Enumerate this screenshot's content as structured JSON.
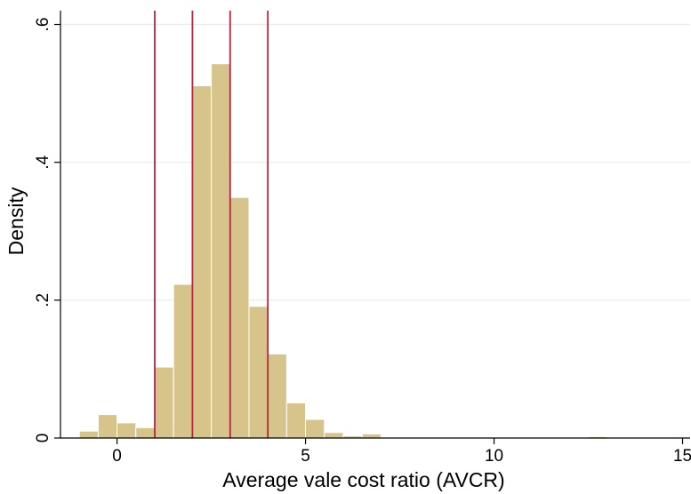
{
  "chart_data": {
    "type": "bar",
    "title": "",
    "xlabel": "Average vale cost ratio (AVCR)",
    "ylabel": "Density",
    "xlim": [
      -1.5,
      15.2
    ],
    "ylim": [
      0,
      0.62
    ],
    "x_ticks": [
      {
        "value": 0,
        "label": "0"
      },
      {
        "value": 5,
        "label": "5"
      },
      {
        "value": 10,
        "label": "10"
      },
      {
        "value": 15,
        "label": "15"
      }
    ],
    "y_ticks": [
      {
        "value": 0,
        "label": "0"
      },
      {
        "value": 0.2,
        "label": ".2"
      },
      {
        "value": 0.4,
        "label": ".4"
      },
      {
        "value": 0.6,
        "label": ".6"
      }
    ],
    "grid": true,
    "bin_width": 0.5,
    "bins": [
      {
        "start": -1.0,
        "density": 0.01
      },
      {
        "start": -0.5,
        "density": 0.034
      },
      {
        "start": 0.0,
        "density": 0.022
      },
      {
        "start": 0.5,
        "density": 0.015
      },
      {
        "start": 0.5,
        "density": 0.015
      },
      {
        "start": 1.0,
        "density": 0.103
      },
      {
        "start": 1.5,
        "density": 0.223
      },
      {
        "start": 2.0,
        "density": 0.511
      },
      {
        "start": 2.5,
        "density": 0.543
      },
      {
        "start": 3.0,
        "density": 0.349
      },
      {
        "start": 3.5,
        "density": 0.191
      },
      {
        "start": 4.0,
        "density": 0.122
      },
      {
        "start": 4.5,
        "density": 0.051
      },
      {
        "start": 5.0,
        "density": 0.027
      },
      {
        "start": 5.5,
        "density": 0.008
      },
      {
        "start": 6.0,
        "density": 0.003
      },
      {
        "start": 6.5,
        "density": 0.006
      },
      {
        "start": 7.0,
        "density": 0.001
      },
      {
        "start": 7.5,
        "density": 0.001
      },
      {
        "start": 8.0,
        "density": 0.001
      },
      {
        "start": 11.0,
        "density": 0.001
      },
      {
        "start": 12.0,
        "density": 0.001
      },
      {
        "start": 12.5,
        "density": 0.002
      },
      {
        "start": 13.0,
        "density": 0.001
      },
      {
        "start": 13.5,
        "density": 0.001
      },
      {
        "start": 14.0,
        "density": 0.001
      }
    ],
    "vertical_lines": [
      1,
      2,
      3,
      4
    ],
    "colors": {
      "bar_fill": "#d6c48a",
      "bar_stroke": "#ffffff",
      "vline": "#b7243e",
      "grid": "#e6ecef",
      "axis": "#000000"
    }
  }
}
